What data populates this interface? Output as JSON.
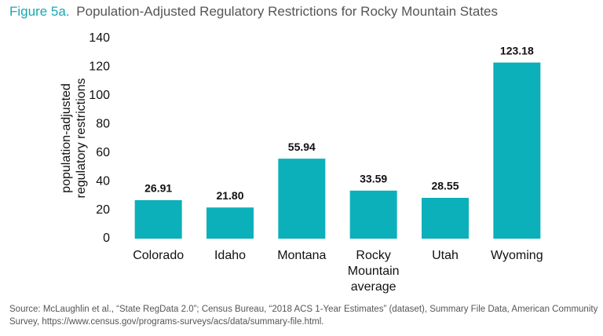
{
  "chart_data": {
    "type": "bar",
    "figure_label": "Figure 5a.",
    "title": "Population-Adjusted Regulatory Restrictions for Rocky Mountain States",
    "y_label": [
      "population-adjusted",
      "regulatory restrictions"
    ],
    "categories": [
      "Colorado",
      "Idaho",
      "Montana",
      "Rocky Mountain average",
      "Utah",
      "Wyoming"
    ],
    "values": [
      26.91,
      21.8,
      55.94,
      33.59,
      28.55,
      123.18
    ],
    "value_labels": [
      "26.91",
      "21.80",
      "55.94",
      "33.59",
      "28.55",
      "123.18"
    ],
    "color": "#0cb0ba",
    "ylim": [
      0,
      140
    ],
    "yticks": [
      0,
      20,
      40,
      60,
      80,
      100,
      120,
      140
    ],
    "grid": false,
    "source": "Source: McLaughlin et al., “State RegData 2.0”; Census Bureau, “2018 ACS 1-Year Estimates” (dataset), Summary File Data, American Community Survey, https://www.census.gov/programs-surveys/acs/data/summary-file.html."
  }
}
